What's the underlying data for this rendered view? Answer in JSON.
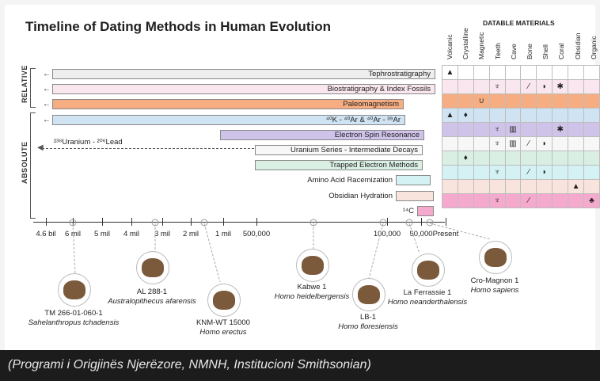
{
  "title": "Timeline of Dating Methods in Human Evolution",
  "groups": {
    "relative": "RELATIVE",
    "absolute": "ABSOLUTE"
  },
  "materials_title": "DATABLE MATERIALS",
  "materials": [
    "Volcanic",
    "Crystalline",
    "Magnetic",
    "Teeth",
    "Cave",
    "Bone",
    "Shell",
    "Coral",
    "Obsidian",
    "Organic"
  ],
  "methods": [
    {
      "name": "Tephrostratigraphy",
      "color": "#eeeeee",
      "start": "beyond"
    },
    {
      "name": "Biostratigraphy & Index Fossils",
      "color": "#f9e6ee",
      "start": "beyond"
    },
    {
      "name": "Paleomagnetism",
      "color": "#f6ad82",
      "start": "beyond"
    },
    {
      "name": "⁴⁰K - ⁴⁰Ar & ⁴⁰Ar - ³⁹Ar",
      "color": "#cfe3f3",
      "start": "beyond"
    },
    {
      "name": "Electron Spin Resonance",
      "color": "#cfc3ea"
    },
    {
      "name": "Uranium Series - Intermediate Decays",
      "color": "#f7f7f7"
    },
    {
      "name": "Trapped Electron Methods",
      "color": "#d9efe3"
    },
    {
      "name": "Amino Acid Racemization",
      "color": "#d4f2f3"
    },
    {
      "name": "Obsidian Hydration",
      "color": "#f8e4dc"
    },
    {
      "name": "¹⁴C",
      "color": "#f4a9cd"
    }
  ],
  "uranium_lead": "²³⁸Uranium - ²⁰⁶Lead",
  "row_colors": [
    "#ffffff",
    "#f9e6ee",
    "#f6ad82",
    "#cfe3f3",
    "#cfc3ea",
    "#f7f7f7",
    "#d9efe3",
    "#d4f2f3",
    "#f8e4dc",
    "#f4a9cd"
  ],
  "material_icons": [
    [
      "volcano",
      "",
      "",
      "",
      "",
      "",
      "",
      "",
      "",
      ""
    ],
    [
      "",
      "",
      "",
      "tooth",
      "",
      "bone",
      "shell",
      "coral",
      "",
      ""
    ],
    [
      "",
      "",
      "magnet",
      "",
      "",
      "",
      "",
      "",
      "",
      ""
    ],
    [
      "volcano",
      "crystal",
      "",
      "",
      "",
      "",
      "",
      "",
      "",
      ""
    ],
    [
      "",
      "",
      "",
      "tooth",
      "cave",
      "",
      "",
      "coral",
      "",
      ""
    ],
    [
      "",
      "",
      "",
      "tooth",
      "cave",
      "bone",
      "shell",
      "",
      "",
      ""
    ],
    [
      "",
      "crystal",
      "",
      "",
      "",
      "",
      "",
      "",
      "",
      ""
    ],
    [
      "",
      "",
      "",
      "tooth",
      "",
      "bone",
      "shell",
      "",
      "",
      ""
    ],
    [
      "",
      "",
      "",
      "",
      "",
      "",
      "",
      "",
      "obsidian",
      ""
    ],
    [
      "",
      "",
      "",
      "tooth",
      "",
      "bone",
      "",
      "",
      "",
      "plant"
    ]
  ],
  "axis_labels": [
    "4.6 bil",
    "6 mil",
    "5 mil",
    "4 mil",
    "3 mil",
    "2 mil",
    "1 mil",
    "500,000",
    "100,000",
    "50,000",
    "Present"
  ],
  "fossils": [
    {
      "id": "TM 266-01-060-1",
      "species": "Sahelanthropus tchadensis"
    },
    {
      "id": "AL 288-1",
      "species": "Australopithecus afarensis"
    },
    {
      "id": "KNM-WT 15000",
      "species": "Homo erectus"
    },
    {
      "id": "Kabwe 1",
      "species": "Homo heidelbergensis"
    },
    {
      "id": "LB-1",
      "species": "Homo floresiensis"
    },
    {
      "id": "La Ferrassie 1",
      "species": "Homo neanderthalensis"
    },
    {
      "id": "Cro-Magnon 1",
      "species": "Homo sapiens"
    }
  ],
  "caption": "(Programi i Origjinës Njerëzore, NMNH, Institucioni Smithsonian)"
}
